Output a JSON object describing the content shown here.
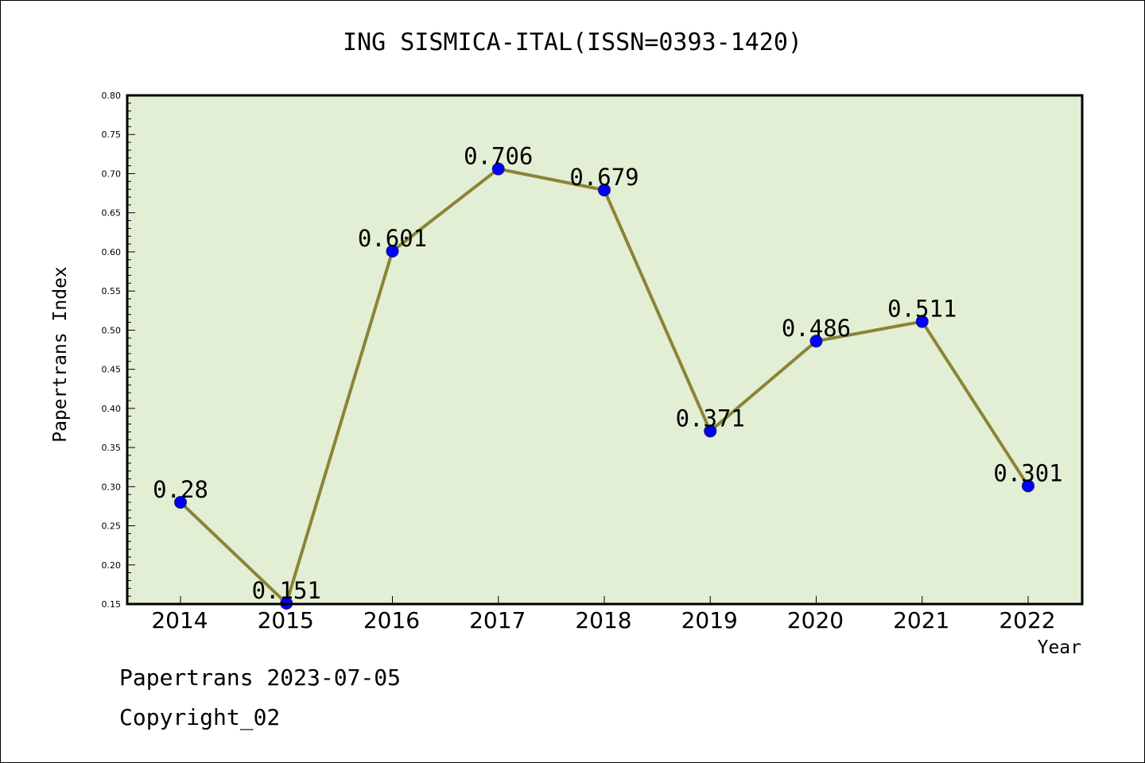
{
  "chart_data": {
    "type": "line",
    "title": "ING SISMICA-ITAL(ISSN=0393-1420)",
    "xlabel": "Year",
    "ylabel": "Papertrans Index",
    "categories": [
      "2014",
      "2015",
      "2016",
      "2017",
      "2018",
      "2019",
      "2020",
      "2021",
      "2022"
    ],
    "values": [
      0.28,
      0.151,
      0.601,
      0.706,
      0.679,
      0.371,
      0.486,
      0.511,
      0.301
    ],
    "data_labels": [
      "0.28",
      "0.151",
      "0.601",
      "0.706",
      "0.679",
      "0.371",
      "0.486",
      "0.511",
      "0.301"
    ],
    "ylim": [
      0.15,
      0.8
    ],
    "yticks": [
      "0.15",
      "0.20",
      "0.25",
      "0.30",
      "0.35",
      "0.40",
      "0.45",
      "0.50",
      "0.55",
      "0.60",
      "0.65",
      "0.70",
      "0.75",
      "0.80"
    ],
    "grid": false,
    "colors": {
      "plot_background": "#e2efd5",
      "line": "#8b8435",
      "marker": "#0000ff"
    }
  },
  "footer": {
    "line1": "Papertrans 2023-07-05",
    "line2": "Copyright_02"
  }
}
